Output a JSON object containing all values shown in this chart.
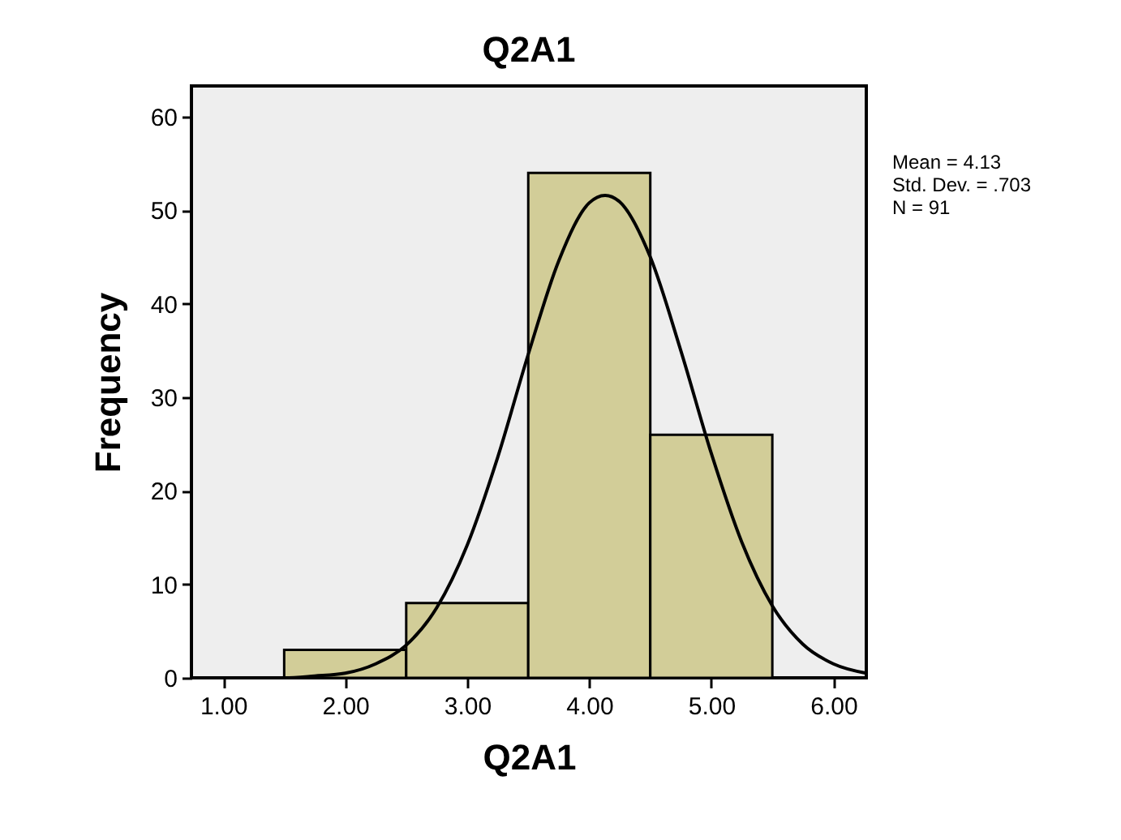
{
  "chart_data": {
    "type": "histogram",
    "title": "Q2A1",
    "xlabel": "Q2A1",
    "ylabel": "Frequency",
    "series": [
      {
        "bins": [
          1.5,
          2.5,
          3.5,
          4.5,
          5.5
        ],
        "values": [
          3,
          8,
          54,
          26
        ],
        "color": "#d2cd98"
      },
      {
        "type": "line",
        "color": "#000000",
        "x": [
          0.74,
          1.5,
          1.75,
          2.0,
          2.25,
          2.5,
          2.75,
          3.0,
          3.25,
          3.5,
          3.75,
          4.0,
          4.13,
          4.25,
          4.5,
          4.75,
          5.0,
          5.25,
          5.5,
          5.75,
          6.0,
          6.27
        ],
        "values": [
          0,
          0,
          0.2,
          0.5,
          1.5,
          3.5,
          7.5,
          14.2,
          23.6,
          34.6,
          44.6,
          50.8,
          51.6,
          50.9,
          45.0,
          35.0,
          24.0,
          14.5,
          7.7,
          3.6,
          1.5,
          0.5
        ]
      }
    ],
    "xlim": [
      0.74,
      6.27
    ],
    "ylim": [
      0,
      63.3
    ],
    "xticks": [
      {
        "value": 1,
        "label": "1.00"
      },
      {
        "value": 2,
        "label": "2.00"
      },
      {
        "value": 3,
        "label": "3.00"
      },
      {
        "value": 4,
        "label": "4.00"
      },
      {
        "value": 5,
        "label": "5.00"
      },
      {
        "value": 6,
        "label": "6.00"
      }
    ],
    "yticks": [
      0,
      10,
      20,
      30,
      40,
      50,
      60
    ],
    "annotations": [
      "Mean = 4.13",
      "Std. Dev. = .703",
      "N = 91"
    ]
  }
}
